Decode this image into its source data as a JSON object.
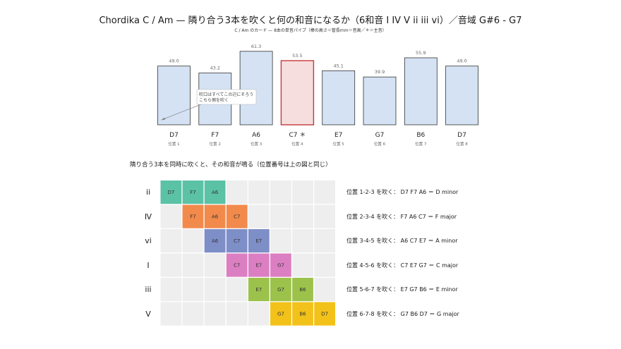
{
  "header": {
    "title": "Chordika C / Am — 隣り合う3本を吹くと何の和音になるか（6和音 I IV V ii iii vi）／音域 G#6 - G7",
    "subtitle": "C / Am のカード — 8本の単音パイプ（棒の高さ＝管長mm＝音高／＊＝主音）"
  },
  "chart_data": {
    "type": "bar",
    "categories": [
      "D7",
      "F7",
      "A6",
      "C7 ＊",
      "E7",
      "G7",
      "B6",
      "D7"
    ],
    "positions": [
      "位置 1",
      "位置 2",
      "位置 3",
      "位置 4",
      "位置 5",
      "位置 6",
      "位置 7",
      "位置 8"
    ],
    "values": [
      49.0,
      43.2,
      61.3,
      53.5,
      45.1,
      39.9,
      55.9,
      49.0
    ],
    "value_labels": [
      "49.0",
      "43.2",
      "61.3",
      "53.5",
      "45.1",
      "39.9",
      "55.9",
      "49.0"
    ],
    "highlight_index": 3,
    "annotation": [
      "吹口はすべてこの辺にそろう",
      "こちら側を吹く"
    ],
    "colors": {
      "bar_fill": "#d4e2f4",
      "bar_stroke": "#333333",
      "highlight_fill": "#f7dede",
      "highlight_stroke": "#c23a3a"
    }
  },
  "matrix": {
    "label": "隣り合う3本を同時に吹くと、その和音が鳴る（位置番号は上の図と同じ）",
    "columns": 8,
    "rows": [
      {
        "numeral": "ii",
        "start": 0,
        "notes": [
          "D7",
          "F7",
          "A6"
        ],
        "color": "#5bc2a5",
        "text": "位置 1-2-3 を吹く：  D7 F7 A6 ＝ D minor"
      },
      {
        "numeral": "Ⅳ",
        "start": 1,
        "notes": [
          "F7",
          "A6",
          "C7"
        ],
        "color": "#f28a4c",
        "text": "位置 2-3-4 を吹く：  F7 A6 C7 ＝ F major"
      },
      {
        "numeral": "vi",
        "start": 2,
        "notes": [
          "A6",
          "C7",
          "E7"
        ],
        "color": "#7e8ec7",
        "text": "位置 3-4-5 を吹く：  A6 C7 E7 ＝ A minor"
      },
      {
        "numeral": "Ⅰ",
        "start": 3,
        "notes": [
          "C7",
          "E7",
          "G7"
        ],
        "color": "#dc7fc2",
        "text": "位置 4-5-6 を吹く：  C7 E7 G7 ＝ C major"
      },
      {
        "numeral": "iii",
        "start": 4,
        "notes": [
          "E7",
          "G7",
          "B6"
        ],
        "color": "#9cc24c",
        "text": "位置 5-6-7 を吹く：  E7 G7 B6 ＝ E minor"
      },
      {
        "numeral": "Ⅴ",
        "start": 5,
        "notes": [
          "G7",
          "B6",
          "D7"
        ],
        "color": "#f2c21a",
        "text": "位置 6-7-8 を吹く：  G7 B6 D7 ＝ G major"
      }
    ],
    "empty_color": "#eeeeee"
  }
}
